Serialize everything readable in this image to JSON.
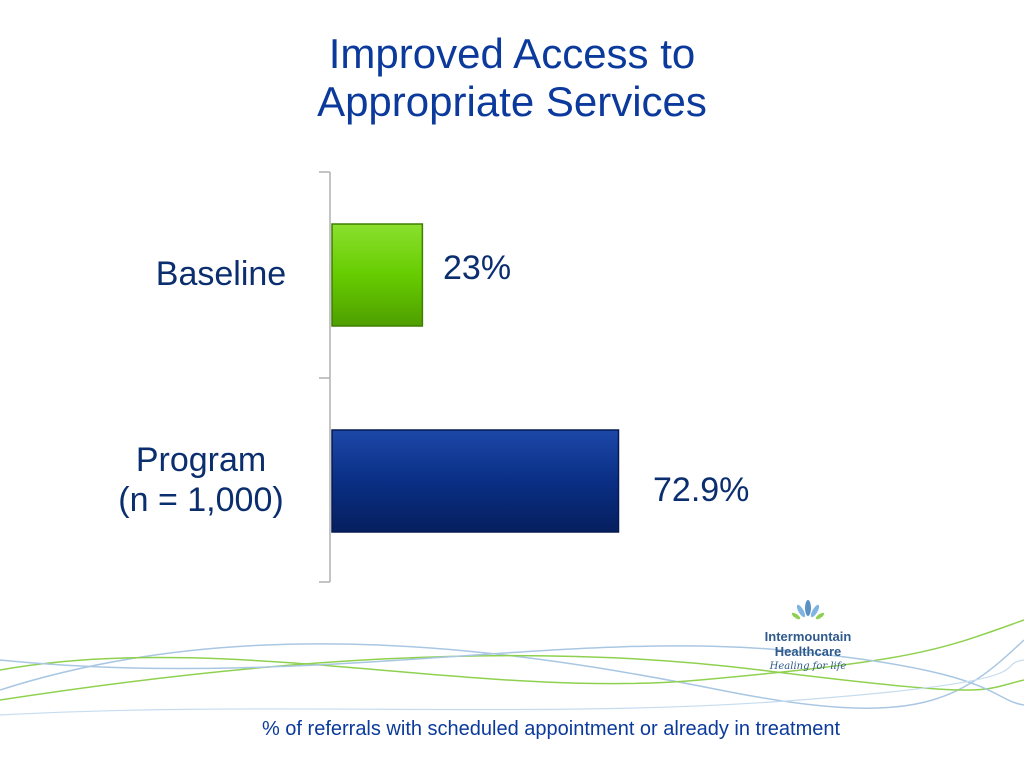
{
  "title": {
    "line1": "Improved Access to",
    "line2": "Appropriate Services"
  },
  "chart_data": {
    "type": "bar",
    "orientation": "horizontal",
    "categories": [
      {
        "line1": "Baseline",
        "line2": ""
      },
      {
        "line1": "Program",
        "line2": "(n = 1,000)"
      }
    ],
    "values": [
      23,
      72.9
    ],
    "value_labels": [
      "23%",
      "72.9%"
    ],
    "colors": [
      "#66cc00",
      "#0a2f85"
    ],
    "xlim": [
      0,
      100
    ],
    "grid": false,
    "legend": "none",
    "footnote": "% of referrals with scheduled appointment or already in treatment"
  },
  "logo": {
    "name_line1": "Intermountain",
    "name_line2": "Healthcare",
    "tagline": "Healing for life"
  },
  "colors": {
    "title": "#0b3a9c",
    "label": "#0a2e6e",
    "waves": [
      "#a9c7e3",
      "#8fd14f"
    ]
  }
}
